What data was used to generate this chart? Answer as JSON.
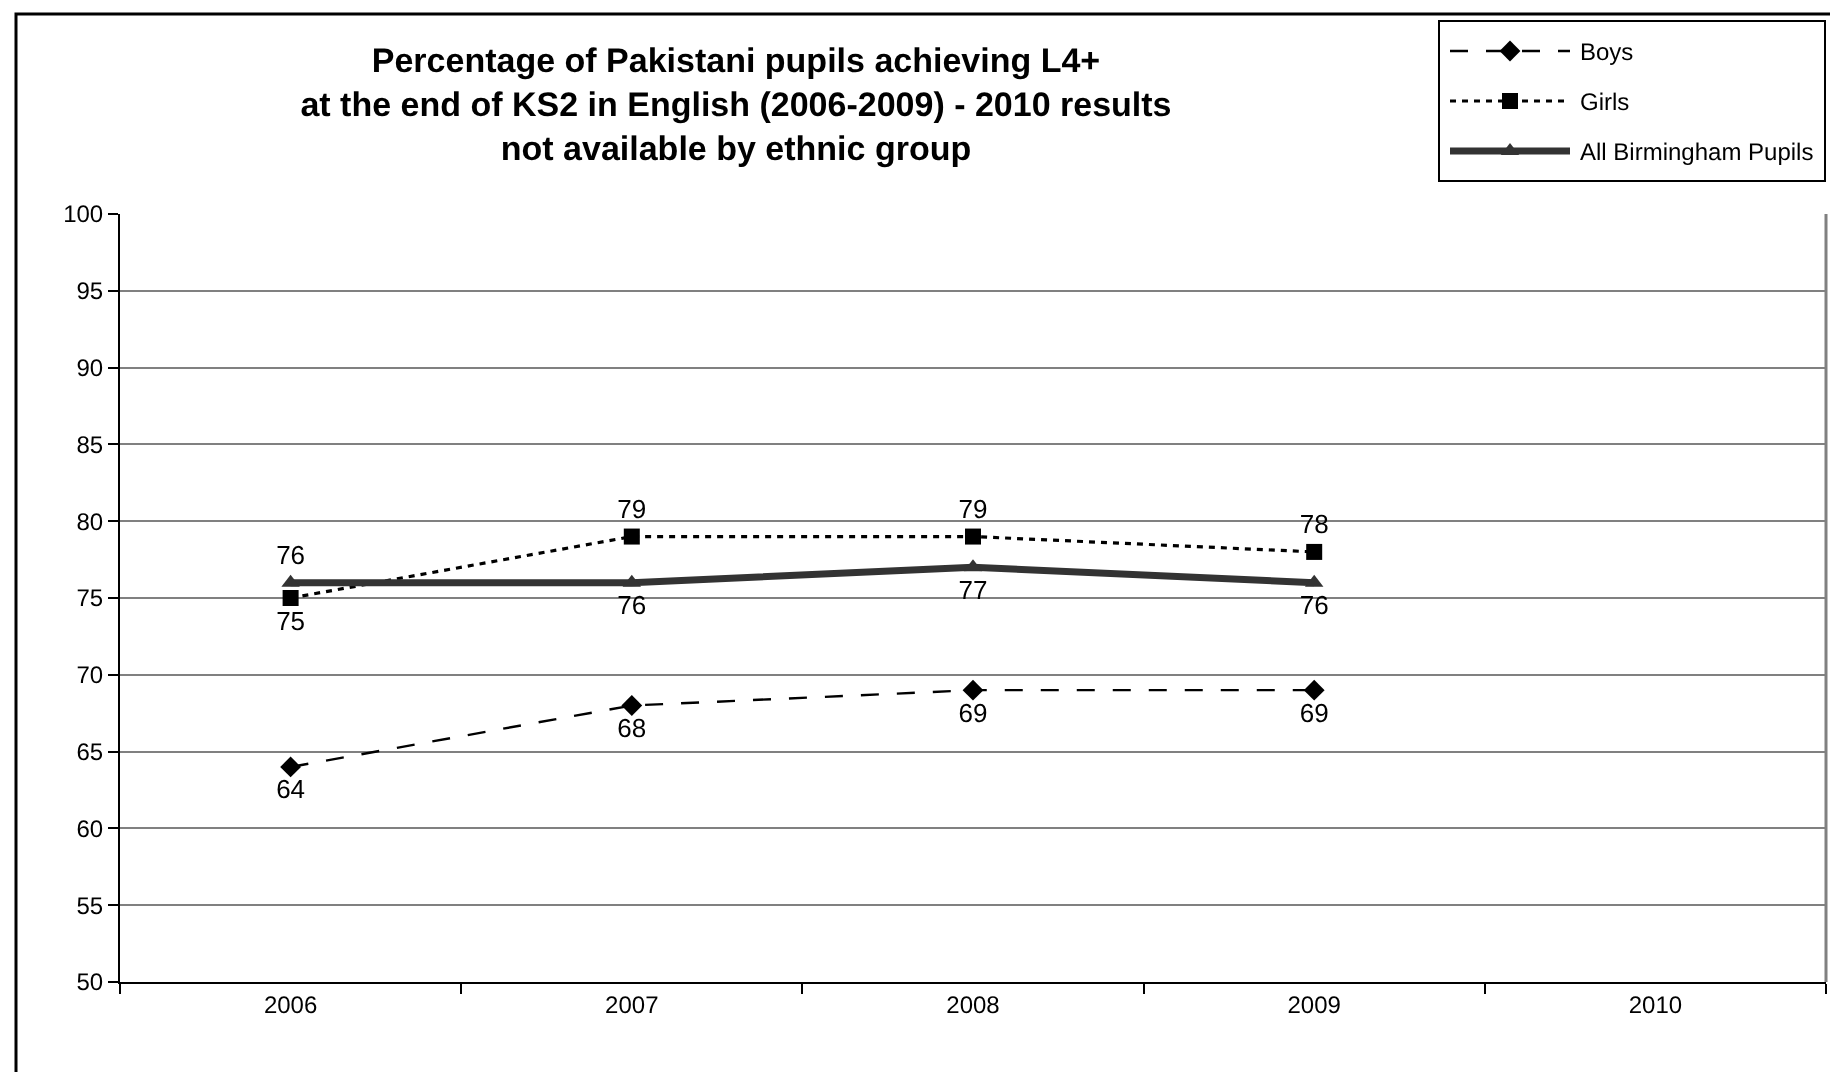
{
  "chart_data": {
    "type": "line",
    "title": "Percentage of Pakistani pupils achieving L4+\nat the end of KS2 in English (2006-2009) - 2010 results\nnot available by ethnic group",
    "categories": [
      "2006",
      "2007",
      "2008",
      "2009",
      "2010"
    ],
    "series": [
      {
        "name": "Boys",
        "color": "#000000",
        "values": [
          64,
          68,
          69,
          69,
          null
        ],
        "marker": "diamond",
        "line_style": "dashed"
      },
      {
        "name": "Girls",
        "color": "#000000",
        "values": [
          75,
          79,
          79,
          78,
          null
        ],
        "marker": "square",
        "line_style": "dotted"
      },
      {
        "name": "All Birmingham Pupils",
        "color": "#333333",
        "values": [
          76,
          76,
          77,
          76,
          null
        ],
        "marker": "triangle",
        "line_style": "solid"
      }
    ],
    "ylim": [
      50,
      100
    ],
    "yticks": [
      50,
      55,
      60,
      65,
      70,
      75,
      80,
      85,
      90,
      95,
      100
    ],
    "grid": "y",
    "legend": "top right",
    "data_labels": true
  }
}
